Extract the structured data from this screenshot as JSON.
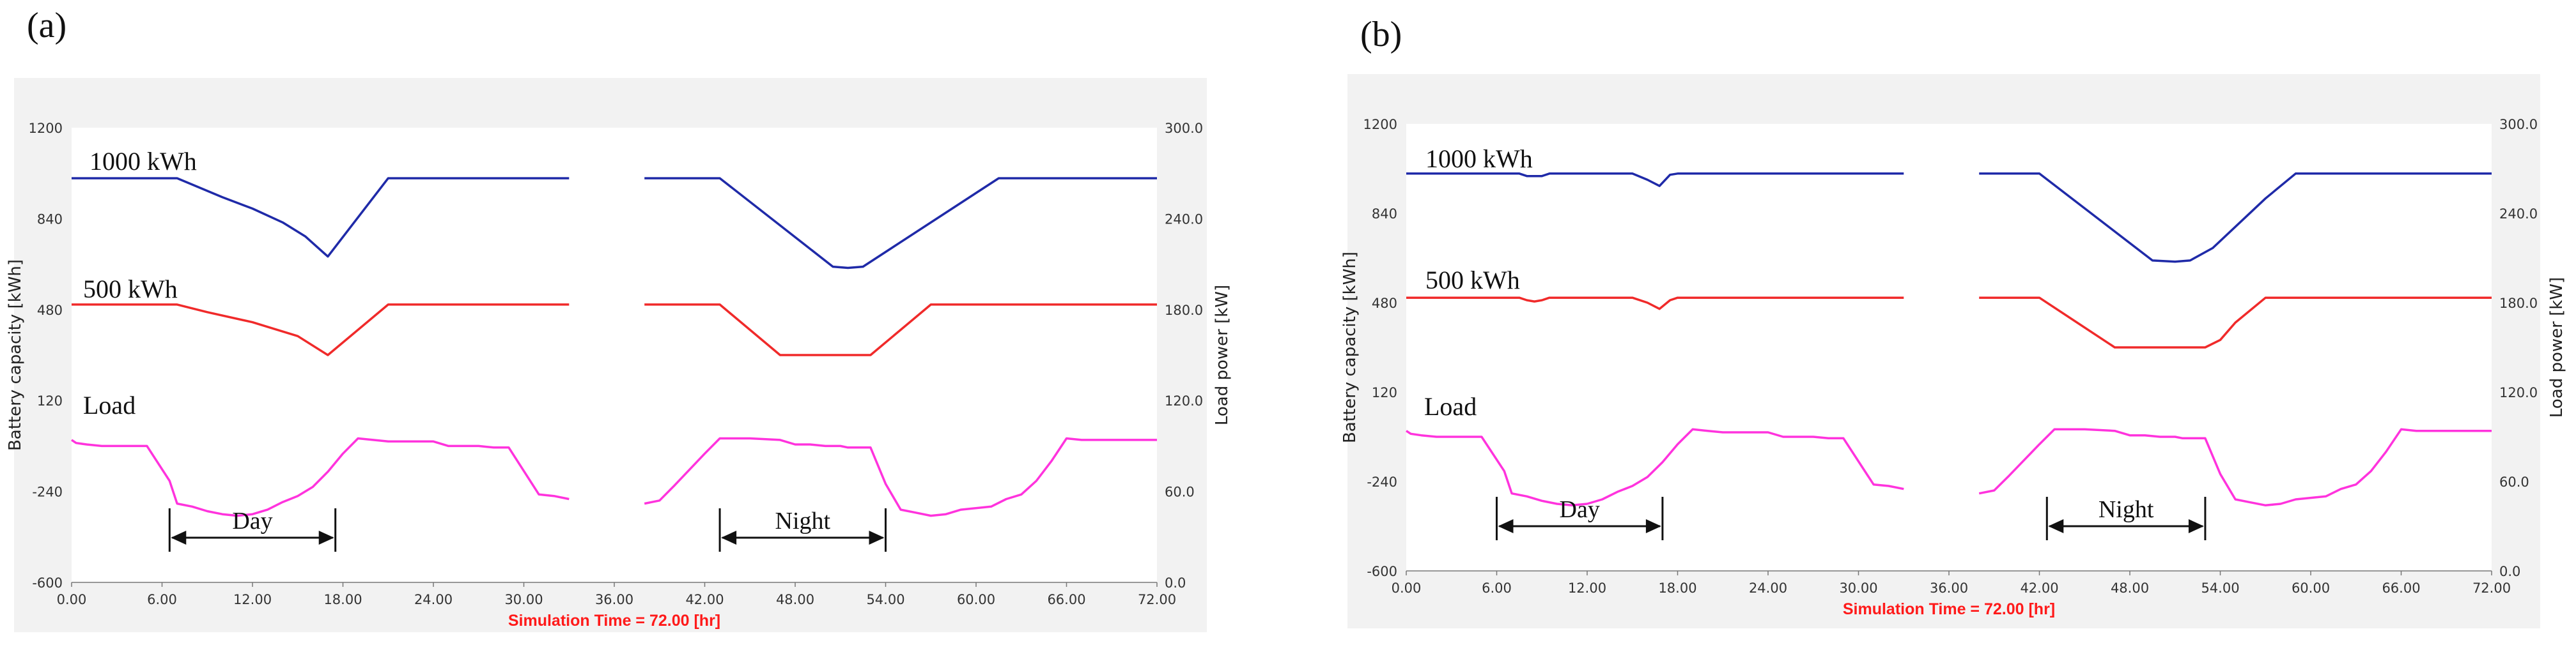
{
  "panels": [
    {
      "label": "(a)"
    },
    {
      "label": "(b)"
    }
  ],
  "colors": {
    "high": "#1f2aa8",
    "low": "#f02a2a",
    "load": "#ff33dd",
    "frame": "#f2f2f2",
    "plot": "#ffffff"
  },
  "chart_data": [
    {
      "type": "line",
      "panel": "(a)",
      "xlabel": "Simulation Time =  72.00 [hr]",
      "ylabel": "Battery capacity [kWh]",
      "y2label": "Load power [kW]",
      "xlim": [
        0,
        72
      ],
      "ylim": [
        -600,
        1200
      ],
      "y2lim": [
        0,
        300
      ],
      "xticks": [
        "0.00",
        "6.00",
        "12.00",
        "18.00",
        "24.00",
        "30.00",
        "36.00",
        "42.00",
        "48.00",
        "54.00",
        "60.00",
        "66.00",
        "72.00"
      ],
      "yticks": [
        "-600",
        "-240",
        "120",
        "480",
        "840",
        "1200"
      ],
      "y2ticks": [
        "0.0",
        "60.0",
        "120.0",
        "180.0",
        "240.0",
        "300.0"
      ],
      "gap": [
        33,
        38
      ],
      "series": [
        {
          "name": "1000 kWh",
          "color_key": "high",
          "axis": "left",
          "segments": [
            [
              [
                0,
                1000
              ],
              [
                7,
                1000
              ],
              [
                8,
                975
              ],
              [
                10,
                925
              ],
              [
                12,
                880
              ],
              [
                14,
                825
              ],
              [
                15.5,
                770
              ],
              [
                17,
                690
              ],
              [
                21,
                1000
              ],
              [
                33,
                1000
              ]
            ],
            [
              [
                38,
                1000
              ],
              [
                43,
                1000
              ],
              [
                50.5,
                650
              ],
              [
                51.5,
                645
              ],
              [
                52.5,
                650
              ],
              [
                61.5,
                1000
              ],
              [
                72,
                1000
              ]
            ]
          ]
        },
        {
          "name": "500 kWh",
          "color_key": "low",
          "axis": "left",
          "segments": [
            [
              [
                0,
                500
              ],
              [
                7,
                500
              ],
              [
                9,
                470
              ],
              [
                12,
                430
              ],
              [
                15,
                375
              ],
              [
                17,
                300
              ],
              [
                21,
                500
              ],
              [
                33,
                500
              ]
            ],
            [
              [
                38,
                500
              ],
              [
                43,
                500
              ],
              [
                47,
                300
              ],
              [
                53,
                300
              ],
              [
                57,
                500
              ],
              [
                72,
                500
              ]
            ]
          ]
        },
        {
          "name": "Load",
          "color_key": "load",
          "axis": "right",
          "segments": [
            [
              [
                0,
                94
              ],
              [
                0.3,
                92
              ],
              [
                1,
                91
              ],
              [
                2,
                90
              ],
              [
                5,
                90
              ],
              [
                6.5,
                67
              ],
              [
                7,
                52
              ],
              [
                8,
                50
              ],
              [
                9,
                47
              ],
              [
                10,
                45
              ],
              [
                11,
                44
              ],
              [
                12,
                45
              ],
              [
                13,
                48
              ],
              [
                14,
                53
              ],
              [
                15,
                57
              ],
              [
                16,
                63
              ],
              [
                17,
                73
              ],
              [
                18,
                85
              ],
              [
                19,
                95
              ],
              [
                20,
                94
              ],
              [
                21,
                93
              ],
              [
                22,
                93
              ],
              [
                24,
                93
              ],
              [
                25,
                90
              ],
              [
                26,
                90
              ],
              [
                27,
                90
              ],
              [
                28,
                89
              ],
              [
                29,
                89
              ],
              [
                31,
                58
              ],
              [
                32,
                57
              ],
              [
                33,
                55
              ]
            ],
            [
              [
                38,
                52
              ],
              [
                39,
                54
              ],
              [
                40,
                64
              ],
              [
                42,
                85
              ],
              [
                43,
                95
              ],
              [
                44,
                95
              ],
              [
                45,
                95
              ],
              [
                47,
                94
              ],
              [
                48,
                91
              ],
              [
                49,
                91
              ],
              [
                50,
                90
              ],
              [
                51,
                90
              ],
              [
                51.5,
                89
              ],
              [
                53,
                89
              ],
              [
                54,
                65
              ],
              [
                55,
                48
              ],
              [
                56,
                46
              ],
              [
                57,
                44
              ],
              [
                58,
                45
              ],
              [
                59,
                48
              ],
              [
                61,
                50
              ],
              [
                62,
                55
              ],
              [
                63,
                58
              ],
              [
                64,
                67
              ],
              [
                65,
                80
              ],
              [
                66,
                95
              ],
              [
                67,
                94
              ],
              [
                68,
                94
              ],
              [
                70,
                94
              ],
              [
                72,
                94
              ]
            ]
          ]
        }
      ],
      "labels": [
        "1000 kWh",
        "500 kWh",
        "Load"
      ],
      "annotations": [
        {
          "text": "Day",
          "from": 6.5,
          "to": 17.5
        },
        {
          "text": "Night",
          "from": 43,
          "to": 54
        }
      ]
    },
    {
      "type": "line",
      "panel": "(b)",
      "xlabel": "Simulation Time =  72.00 [hr]",
      "ylabel": "Battery capacity [kWh]",
      "y2label": "Load power [kW]",
      "xlim": [
        0,
        72
      ],
      "ylim": [
        -600,
        1200
      ],
      "y2lim": [
        0,
        300
      ],
      "xticks": [
        "0.00",
        "6.00",
        "12.00",
        "18.00",
        "24.00",
        "30.00",
        "36.00",
        "42.00",
        "48.00",
        "54.00",
        "60.00",
        "66.00",
        "72.00"
      ],
      "yticks": [
        "-600",
        "-240",
        "120",
        "480",
        "840",
        "1200"
      ],
      "y2ticks": [
        "0.0",
        "60.0",
        "120.0",
        "180.0",
        "240.0",
        "300.0"
      ],
      "gap": [
        33,
        38
      ],
      "series": [
        {
          "name": "1000 kWh",
          "color_key": "high",
          "axis": "left",
          "segments": [
            [
              [
                0,
                1000
              ],
              [
                7.5,
                1000
              ],
              [
                8,
                990
              ],
              [
                9,
                990
              ],
              [
                9.5,
                1000
              ],
              [
                15,
                1000
              ],
              [
                16,
                975
              ],
              [
                16.8,
                950
              ],
              [
                17.5,
                995
              ],
              [
                18,
                1000
              ],
              [
                33,
                1000
              ]
            ],
            [
              [
                38,
                1000
              ],
              [
                42,
                1000
              ],
              [
                49.5,
                650
              ],
              [
                51,
                645
              ],
              [
                52,
                650
              ],
              [
                53.5,
                700
              ],
              [
                57,
                900
              ],
              [
                59,
                1000
              ],
              [
                72,
                1000
              ]
            ]
          ]
        },
        {
          "name": "500 kWh",
          "color_key": "low",
          "axis": "left",
          "segments": [
            [
              [
                0,
                500
              ],
              [
                7.5,
                500
              ],
              [
                8,
                490
              ],
              [
                8.5,
                485
              ],
              [
                9,
                490
              ],
              [
                9.5,
                500
              ],
              [
                15,
                500
              ],
              [
                16,
                480
              ],
              [
                16.8,
                455
              ],
              [
                17.5,
                490
              ],
              [
                18,
                500
              ],
              [
                33,
                500
              ]
            ],
            [
              [
                38,
                500
              ],
              [
                42,
                500
              ],
              [
                47,
                300
              ],
              [
                53,
                300
              ],
              [
                54,
                330
              ],
              [
                55,
                400
              ],
              [
                57,
                500
              ],
              [
                72,
                500
              ]
            ]
          ]
        },
        {
          "name": "Load",
          "color_key": "load",
          "axis": "right",
          "segments": [
            [
              [
                0,
                94
              ],
              [
                0.3,
                92
              ],
              [
                1,
                91
              ],
              [
                2,
                90
              ],
              [
                5,
                90
              ],
              [
                6.5,
                67
              ],
              [
                7,
                52
              ],
              [
                8,
                50
              ],
              [
                9,
                47
              ],
              [
                10,
                45
              ],
              [
                11,
                44
              ],
              [
                12,
                45
              ],
              [
                13,
                48
              ],
              [
                14,
                53
              ],
              [
                15,
                57
              ],
              [
                16,
                63
              ],
              [
                17,
                73
              ],
              [
                18,
                85
              ],
              [
                19,
                95
              ],
              [
                20,
                94
              ],
              [
                21,
                93
              ],
              [
                22,
                93
              ],
              [
                24,
                93
              ],
              [
                25,
                90
              ],
              [
                26,
                90
              ],
              [
                27,
                90
              ],
              [
                28,
                89
              ],
              [
                29,
                89
              ],
              [
                31,
                58
              ],
              [
                32,
                57
              ],
              [
                33,
                55
              ]
            ],
            [
              [
                38,
                52
              ],
              [
                39,
                54
              ],
              [
                40,
                64
              ],
              [
                42,
                85
              ],
              [
                43,
                95
              ],
              [
                44,
                95
              ],
              [
                45,
                95
              ],
              [
                47,
                94
              ],
              [
                48,
                91
              ],
              [
                49,
                91
              ],
              [
                50,
                90
              ],
              [
                51,
                90
              ],
              [
                51.5,
                89
              ],
              [
                53,
                89
              ],
              [
                54,
                65
              ],
              [
                55,
                48
              ],
              [
                56,
                46
              ],
              [
                57,
                44
              ],
              [
                58,
                45
              ],
              [
                59,
                48
              ],
              [
                61,
                50
              ],
              [
                62,
                55
              ],
              [
                63,
                58
              ],
              [
                64,
                67
              ],
              [
                65,
                80
              ],
              [
                66,
                95
              ],
              [
                67,
                94
              ],
              [
                68,
                94
              ],
              [
                70,
                94
              ],
              [
                72,
                94
              ]
            ]
          ]
        }
      ],
      "labels": [
        "1000 kWh",
        "500 kWh",
        "Load"
      ],
      "annotations": [
        {
          "text": "Day",
          "from": 6,
          "to": 17
        },
        {
          "text": "Night",
          "from": 42.5,
          "to": 53
        }
      ]
    }
  ]
}
